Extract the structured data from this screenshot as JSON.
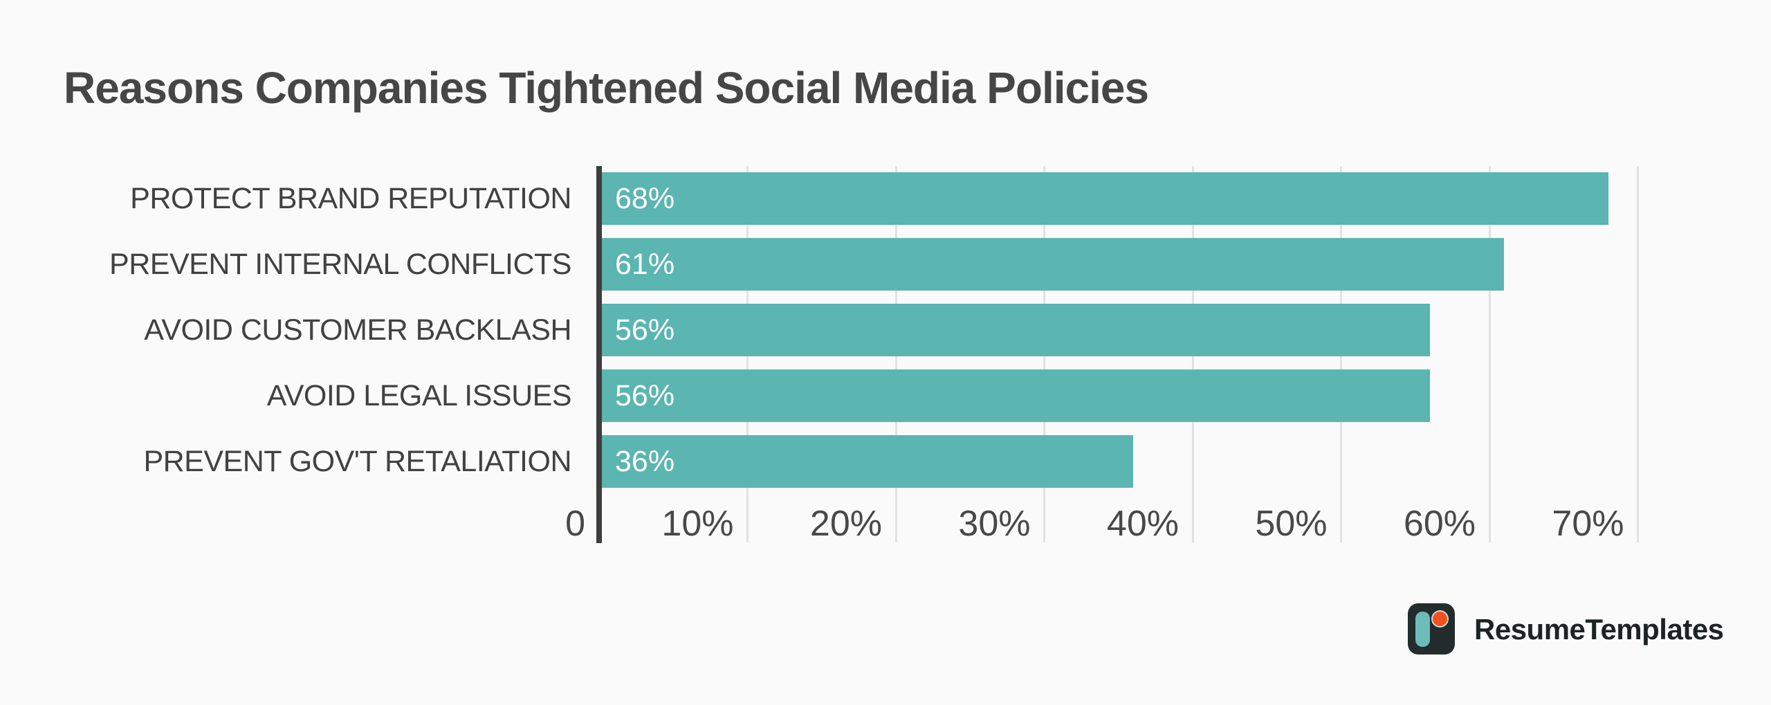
{
  "chart_data": {
    "type": "bar",
    "orientation": "horizontal",
    "title": "Reasons Companies Tightened Social Media Policies",
    "categories": [
      "PROTECT BRAND REPUTATION",
      "PREVENT INTERNAL CONFLICTS",
      "AVOID CUSTOMER BACKLASH",
      "AVOID LEGAL ISSUES",
      "PREVENT GOV'T RETALIATION"
    ],
    "values": [
      68,
      61,
      56,
      56,
      36
    ],
    "value_labels": [
      "68%",
      "61%",
      "56%",
      "56%",
      "36%"
    ],
    "xlabel": "",
    "ylabel": "",
    "xlim": [
      0,
      70
    ],
    "x_ticks": [
      {
        "value": 0,
        "label": "0"
      },
      {
        "value": 10,
        "label": "10%"
      },
      {
        "value": 20,
        "label": "20%"
      },
      {
        "value": 30,
        "label": "30%"
      },
      {
        "value": 40,
        "label": "40%"
      },
      {
        "value": 50,
        "label": "50%"
      },
      {
        "value": 60,
        "label": "60%"
      },
      {
        "value": 70,
        "label": "70%"
      }
    ],
    "grid": "vertical",
    "legend": "none"
  },
  "branding": {
    "brand_name": "ResumeTemplates",
    "logo_icon": "resumetemplates-r-mark"
  },
  "colors": {
    "background": "#fafafa",
    "bar": "#5bb5b1",
    "axis_line": "#3d3d3d",
    "gridline": "#e2e2e2",
    "title_text": "#464646",
    "category_text": "#414141",
    "tick_text": "#484848",
    "value_text": "#ffffff",
    "logo_background": "#222c2c",
    "logo_teal": "#6cbcb8",
    "logo_orange": "#f1511f",
    "brand_text": "#1d2323"
  }
}
